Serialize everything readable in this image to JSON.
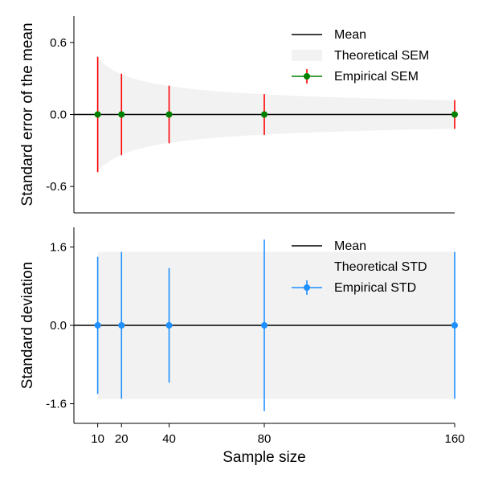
{
  "chart_data": [
    {
      "type": "line",
      "panel": "top",
      "ylabel": "Standard error of the mean",
      "xlabel": "",
      "x": [
        10,
        20,
        40,
        80,
        160
      ],
      "xlim": [
        0,
        160
      ],
      "ylim": [
        -0.82,
        0.82
      ],
      "yticks": [
        0.6,
        0.0,
        -0.6
      ],
      "ytick_labels": [
        "0.6",
        "0.0",
        "-0.6"
      ],
      "grid": false,
      "legend_position": "top-right",
      "legend": [
        "Mean",
        "Theoretical SEM",
        "Empirical SEM"
      ],
      "series": [
        {
          "name": "Mean",
          "kind": "line",
          "y": [
            0,
            0,
            0,
            0,
            0
          ],
          "color": "#000000"
        },
        {
          "name": "Theoretical SEM",
          "kind": "band",
          "band_from_x": 10,
          "band_to_x": 160,
          "band_scale": 1.5,
          "band_law": "1/sqrt(n)",
          "color": "#f2f2f2"
        },
        {
          "name": "Empirical SEM",
          "kind": "errorbar",
          "y": [
            0,
            0,
            0,
            0,
            0
          ],
          "yerr": [
            0.48,
            0.34,
            0.24,
            0.17,
            0.12
          ],
          "marker_color": "#008000",
          "bar_color": "#ff0000"
        }
      ]
    },
    {
      "type": "line",
      "panel": "bottom",
      "ylabel": "Standard deviation",
      "xlabel": "Sample size",
      "x": [
        10,
        20,
        40,
        80,
        160
      ],
      "xlim": [
        0,
        160
      ],
      "ylim": [
        -2.0,
        2.0
      ],
      "xticks": [
        10,
        20,
        40,
        80,
        160
      ],
      "xtick_labels": [
        "10",
        "20",
        "40",
        "80",
        "160"
      ],
      "yticks": [
        1.6,
        0.0,
        -1.6
      ],
      "ytick_labels": [
        "1.6",
        "0.0",
        "-1.6"
      ],
      "grid": false,
      "legend_position": "top-right",
      "legend": [
        "Mean",
        "Theoretical STD",
        "Empirical STD"
      ],
      "series": [
        {
          "name": "Mean",
          "kind": "line",
          "y": [
            0,
            0,
            0,
            0,
            0
          ],
          "color": "#000000"
        },
        {
          "name": "Theoretical STD",
          "kind": "band",
          "band_from_x": 10,
          "band_to_x": 160,
          "band_value": 1.5,
          "color": "#f2f2f2"
        },
        {
          "name": "Empirical STD",
          "kind": "errorbar",
          "y": [
            0,
            0,
            0,
            0,
            0
          ],
          "yerr": [
            1.4,
            1.5,
            1.17,
            1.75,
            1.5
          ],
          "marker_color": "#1e90ff",
          "bar_color": "#1e90ff"
        }
      ]
    }
  ]
}
